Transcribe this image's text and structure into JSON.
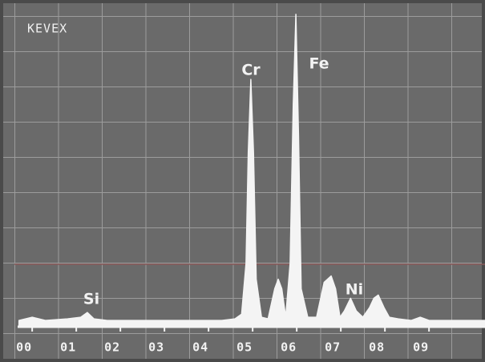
{
  "chart_data": {
    "type": "line",
    "title": "KEVEX",
    "x": [
      -0.3,
      0,
      0.3,
      0.8,
      1.1,
      1.25,
      1.4,
      1.7,
      2.5,
      3.5,
      4.3,
      4.6,
      4.75,
      4.85,
      4.9,
      4.96,
      5.02,
      5.08,
      5.2,
      5.35,
      5.5,
      5.58,
      5.66,
      5.75,
      5.85,
      5.92,
      5.98,
      6.04,
      6.1,
      6.25,
      6.45,
      6.62,
      6.78,
      6.88,
      6.98,
      7.08,
      7.22,
      7.35,
      7.5,
      7.65,
      7.75,
      7.85,
      7.98,
      8.1,
      8.3,
      8.6,
      8.8,
      9.0,
      9.5,
      10.27
    ],
    "series": [
      {
        "color": "#f4f4f4",
        "values": [
          2,
          3,
          2,
          2.5,
          3,
          4.5,
          2.5,
          2,
          2,
          2,
          2,
          2.5,
          4,
          20,
          55,
          78,
          55,
          15,
          3,
          2.5,
          12,
          15,
          12,
          3,
          20,
          70,
          98.5,
          60,
          12,
          3,
          3,
          14,
          16,
          12,
          3,
          5,
          9,
          5,
          3,
          6,
          9,
          10,
          6,
          3,
          2.5,
          2,
          3,
          2,
          2,
          2
        ]
      }
    ],
    "xlim": [
      -0.33,
      10.27
    ],
    "ylim": [
      0,
      100
    ],
    "xticks": [
      {
        "value": 0,
        "label": "00"
      },
      {
        "value": 1,
        "label": "01"
      },
      {
        "value": 2,
        "label": "02"
      },
      {
        "value": 3,
        "label": "03"
      },
      {
        "value": 4,
        "label": "04"
      },
      {
        "value": 5,
        "label": "05"
      },
      {
        "value": 6,
        "label": "06"
      },
      {
        "value": 7,
        "label": "07"
      },
      {
        "value": 8,
        "label": "08"
      },
      {
        "value": 9,
        "label": "09"
      }
    ],
    "annotations": [
      "Si",
      "Cr",
      "Fe",
      "Ni"
    ]
  }
}
